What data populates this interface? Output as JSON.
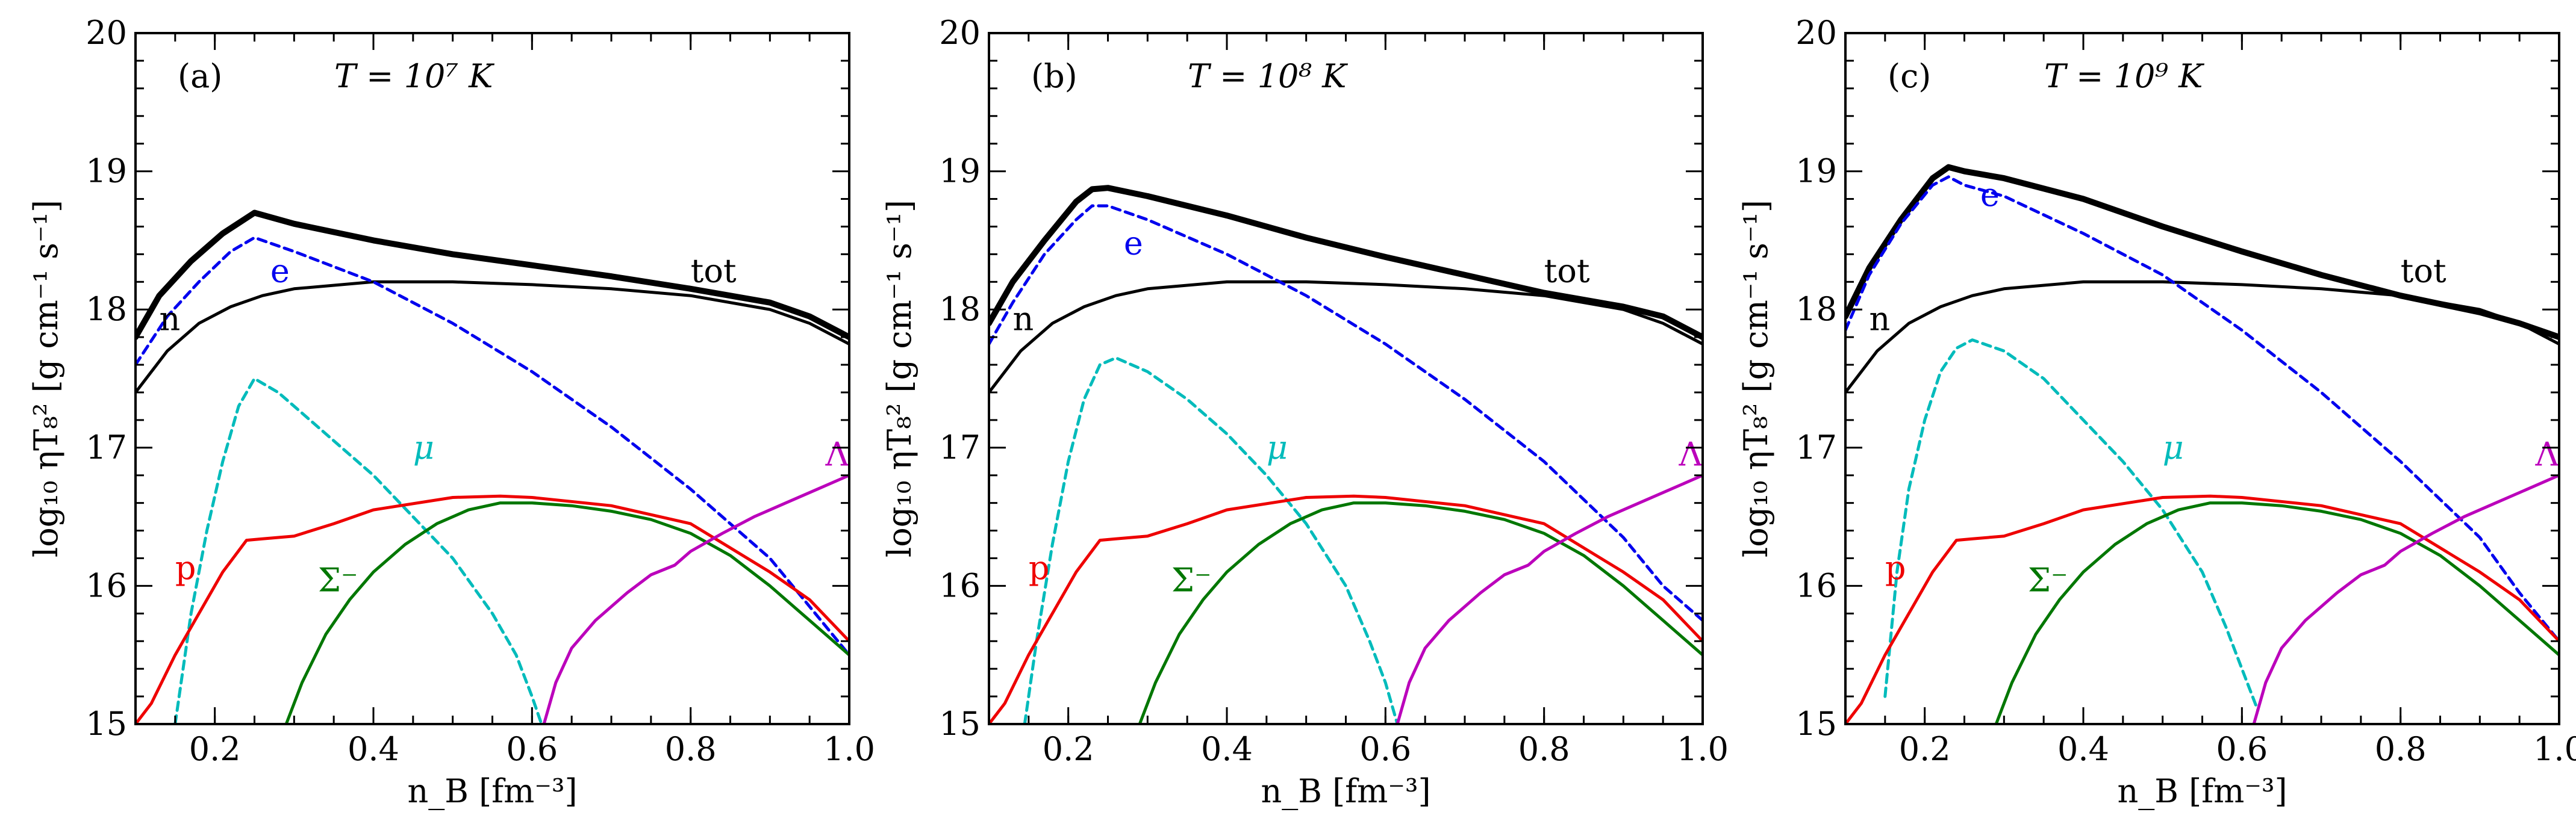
{
  "chart_data": [
    {
      "type": "line",
      "panel_label": "(a)",
      "temperature_label": "T = 10⁷ K",
      "xlabel": "n_B [fm⁻³]",
      "ylabel": "log₁₀ ηT₈² [g cm⁻¹ s⁻¹]",
      "xlim": [
        0.1,
        1.0
      ],
      "ylim": [
        15,
        20
      ],
      "xticks": [
        "0.2",
        "0.4",
        "0.6",
        "0.8",
        "1.0"
      ],
      "yticks": [
        "15",
        "16",
        "17",
        "18",
        "19",
        "20"
      ],
      "series": [
        {
          "name": "tot",
          "label": "tot",
          "color": "#000000",
          "style": "thick",
          "label_at": [
            0.8,
            18.2
          ],
          "x": [
            0.1,
            0.13,
            0.17,
            0.21,
            0.25,
            0.3,
            0.4,
            0.5,
            0.6,
            0.7,
            0.8,
            0.9,
            0.95,
            1.0
          ],
          "y": [
            17.8,
            18.1,
            18.35,
            18.55,
            18.7,
            18.62,
            18.5,
            18.4,
            18.32,
            18.24,
            18.15,
            18.05,
            17.95,
            17.8
          ]
        },
        {
          "name": "n",
          "label": "n",
          "color": "#000000",
          "style": "solid",
          "label_at": [
            0.13,
            17.85
          ],
          "x": [
            0.1,
            0.14,
            0.18,
            0.22,
            0.26,
            0.3,
            0.4,
            0.5,
            0.6,
            0.7,
            0.8,
            0.9,
            0.95,
            1.0
          ],
          "y": [
            17.4,
            17.7,
            17.9,
            18.02,
            18.1,
            18.15,
            18.2,
            18.2,
            18.18,
            18.15,
            18.1,
            18.0,
            17.9,
            17.75
          ]
        },
        {
          "name": "e",
          "label": "e",
          "color": "#0000ee",
          "style": "dashed",
          "label_at": [
            0.27,
            18.2
          ],
          "x": [
            0.1,
            0.14,
            0.18,
            0.22,
            0.25,
            0.3,
            0.4,
            0.5,
            0.6,
            0.7,
            0.8,
            0.9,
            0.95,
            1.0
          ],
          "y": [
            17.6,
            17.95,
            18.2,
            18.42,
            18.52,
            18.42,
            18.2,
            17.9,
            17.55,
            17.15,
            16.7,
            16.2,
            15.85,
            15.5
          ]
        },
        {
          "name": "mu",
          "label": "μ",
          "color": "#00bbbb",
          "style": "dashed",
          "label_at": [
            0.45,
            16.92
          ],
          "x": [
            0.15,
            0.17,
            0.19,
            0.21,
            0.23,
            0.25,
            0.28,
            0.32,
            0.36,
            0.4,
            0.45,
            0.5,
            0.55,
            0.58,
            0.6,
            0.612
          ],
          "y": [
            15.0,
            15.8,
            16.4,
            16.9,
            17.3,
            17.5,
            17.4,
            17.2,
            17.0,
            16.8,
            16.5,
            16.2,
            15.8,
            15.5,
            15.2,
            15.0
          ]
        },
        {
          "name": "p",
          "label": "p",
          "color": "#ee0000",
          "style": "solid",
          "label_at": [
            0.15,
            16.05
          ],
          "x": [
            0.1,
            0.12,
            0.15,
            0.18,
            0.21,
            0.24,
            0.26,
            0.3,
            0.35,
            0.4,
            0.5,
            0.56,
            0.6,
            0.7,
            0.8,
            0.9,
            0.95,
            1.0
          ],
          "y": [
            15.0,
            15.15,
            15.5,
            15.8,
            16.1,
            16.33,
            16.34,
            16.36,
            16.45,
            16.55,
            16.64,
            16.65,
            16.64,
            16.58,
            16.45,
            16.1,
            15.9,
            15.6
          ]
        },
        {
          "name": "sigma",
          "label": "Σ⁻",
          "color": "#007700",
          "style": "solid",
          "label_at": [
            0.33,
            15.96
          ],
          "x": [
            0.29,
            0.31,
            0.34,
            0.37,
            0.4,
            0.44,
            0.48,
            0.52,
            0.56,
            0.6,
            0.65,
            0.7,
            0.75,
            0.8,
            0.85,
            0.9,
            0.95,
            1.0
          ],
          "y": [
            15.0,
            15.3,
            15.65,
            15.9,
            16.1,
            16.3,
            16.45,
            16.55,
            16.6,
            16.6,
            16.58,
            16.54,
            16.48,
            16.38,
            16.22,
            16.0,
            15.75,
            15.5
          ]
        },
        {
          "name": "lambda",
          "label": "Λ",
          "color": "#bb00bb",
          "style": "solid",
          "label_at": [
            0.97,
            16.87
          ],
          "x": [
            0.615,
            0.63,
            0.65,
            0.68,
            0.72,
            0.75,
            0.78,
            0.8,
            0.84,
            0.88,
            0.92,
            0.96,
            1.0
          ],
          "y": [
            15.0,
            15.3,
            15.55,
            15.75,
            15.95,
            16.08,
            16.15,
            16.25,
            16.38,
            16.5,
            16.6,
            16.7,
            16.8
          ]
        }
      ]
    },
    {
      "type": "line",
      "panel_label": "(b)",
      "temperature_label": "T = 10⁸ K",
      "xlabel": "n_B [fm⁻³]",
      "ylabel": "log₁₀ ηT₈² [g cm⁻¹ s⁻¹]",
      "xlim": [
        0.1,
        1.0
      ],
      "ylim": [
        15,
        20
      ],
      "xticks": [
        "0.2",
        "0.4",
        "0.6",
        "0.8",
        "1.0"
      ],
      "yticks": [
        "15",
        "16",
        "17",
        "18",
        "19",
        "20"
      ],
      "series": [
        {
          "name": "tot",
          "label": "tot",
          "color": "#000000",
          "style": "thick",
          "label_at": [
            0.8,
            18.2
          ],
          "x": [
            0.1,
            0.13,
            0.17,
            0.21,
            0.23,
            0.25,
            0.3,
            0.4,
            0.5,
            0.6,
            0.7,
            0.8,
            0.9,
            0.95,
            1.0
          ],
          "y": [
            17.9,
            18.2,
            18.5,
            18.78,
            18.87,
            18.88,
            18.82,
            18.68,
            18.52,
            18.38,
            18.25,
            18.12,
            18.02,
            17.95,
            17.8
          ]
        },
        {
          "name": "n",
          "label": "n",
          "color": "#000000",
          "style": "solid",
          "label_at": [
            0.13,
            17.85
          ],
          "x": [
            0.1,
            0.14,
            0.18,
            0.22,
            0.26,
            0.3,
            0.4,
            0.5,
            0.6,
            0.7,
            0.8,
            0.9,
            0.95,
            1.0
          ],
          "y": [
            17.4,
            17.7,
            17.9,
            18.02,
            18.1,
            18.15,
            18.2,
            18.2,
            18.18,
            18.15,
            18.1,
            18.0,
            17.9,
            17.75
          ]
        },
        {
          "name": "e",
          "label": "e",
          "color": "#0000ee",
          "style": "dashed",
          "label_at": [
            0.27,
            18.4
          ],
          "x": [
            0.1,
            0.13,
            0.17,
            0.21,
            0.23,
            0.25,
            0.3,
            0.4,
            0.5,
            0.6,
            0.7,
            0.8,
            0.9,
            0.95,
            1.0
          ],
          "y": [
            17.75,
            18.05,
            18.4,
            18.65,
            18.75,
            18.75,
            18.65,
            18.4,
            18.1,
            17.75,
            17.35,
            16.9,
            16.35,
            16.0,
            15.75
          ]
        },
        {
          "name": "mu",
          "label": "μ",
          "color": "#00bbbb",
          "style": "dashed",
          "label_at": [
            0.45,
            16.92
          ],
          "x": [
            0.145,
            0.16,
            0.18,
            0.2,
            0.22,
            0.24,
            0.26,
            0.3,
            0.35,
            0.4,
            0.45,
            0.5,
            0.55,
            0.58,
            0.6,
            0.615
          ],
          "y": [
            15.0,
            15.6,
            16.3,
            16.9,
            17.35,
            17.6,
            17.65,
            17.55,
            17.35,
            17.1,
            16.8,
            16.45,
            16.0,
            15.6,
            15.3,
            15.0
          ]
        },
        {
          "name": "p",
          "label": "p",
          "color": "#ee0000",
          "style": "solid",
          "label_at": [
            0.15,
            16.05
          ],
          "x": [
            0.1,
            0.12,
            0.15,
            0.18,
            0.21,
            0.24,
            0.26,
            0.3,
            0.35,
            0.4,
            0.5,
            0.56,
            0.6,
            0.7,
            0.8,
            0.9,
            0.95,
            1.0
          ],
          "y": [
            15.0,
            15.15,
            15.5,
            15.8,
            16.1,
            16.33,
            16.34,
            16.36,
            16.45,
            16.55,
            16.64,
            16.65,
            16.64,
            16.58,
            16.45,
            16.1,
            15.9,
            15.6
          ]
        },
        {
          "name": "sigma",
          "label": "Σ⁻",
          "color": "#007700",
          "style": "solid",
          "label_at": [
            0.33,
            15.96
          ],
          "x": [
            0.29,
            0.31,
            0.34,
            0.37,
            0.4,
            0.44,
            0.48,
            0.52,
            0.56,
            0.6,
            0.65,
            0.7,
            0.75,
            0.8,
            0.85,
            0.9,
            0.95,
            1.0
          ],
          "y": [
            15.0,
            15.3,
            15.65,
            15.9,
            16.1,
            16.3,
            16.45,
            16.55,
            16.6,
            16.6,
            16.58,
            16.54,
            16.48,
            16.38,
            16.22,
            16.0,
            15.75,
            15.5
          ]
        },
        {
          "name": "lambda",
          "label": "Λ",
          "color": "#bb00bb",
          "style": "solid",
          "label_at": [
            0.97,
            16.87
          ],
          "x": [
            0.615,
            0.63,
            0.65,
            0.68,
            0.72,
            0.75,
            0.78,
            0.8,
            0.84,
            0.88,
            0.92,
            0.96,
            1.0
          ],
          "y": [
            15.0,
            15.3,
            15.55,
            15.75,
            15.95,
            16.08,
            16.15,
            16.25,
            16.38,
            16.5,
            16.6,
            16.7,
            16.8
          ]
        }
      ]
    },
    {
      "type": "line",
      "panel_label": "(c)",
      "temperature_label": "T = 10⁹ K",
      "xlabel": "n_B [fm⁻³]",
      "ylabel": "log₁₀ ηT₈² [g cm⁻¹ s⁻¹]",
      "xlim": [
        0.1,
        1.0
      ],
      "ylim": [
        15,
        20
      ],
      "xticks": [
        "0.2",
        "0.4",
        "0.6",
        "0.8",
        "1.0"
      ],
      "yticks": [
        "15",
        "16",
        "17",
        "18",
        "19",
        "20"
      ],
      "series": [
        {
          "name": "tot",
          "label": "tot",
          "color": "#000000",
          "style": "thick",
          "label_at": [
            0.8,
            18.2
          ],
          "x": [
            0.1,
            0.13,
            0.17,
            0.21,
            0.23,
            0.25,
            0.3,
            0.4,
            0.5,
            0.6,
            0.7,
            0.8,
            0.9,
            0.95,
            1.0
          ],
          "y": [
            17.95,
            18.3,
            18.65,
            18.95,
            19.03,
            19.0,
            18.95,
            18.8,
            18.6,
            18.42,
            18.25,
            18.1,
            17.98,
            17.9,
            17.8
          ]
        },
        {
          "name": "n",
          "label": "n",
          "color": "#000000",
          "style": "solid",
          "label_at": [
            0.13,
            17.85
          ],
          "x": [
            0.1,
            0.14,
            0.18,
            0.22,
            0.26,
            0.3,
            0.4,
            0.5,
            0.6,
            0.7,
            0.8,
            0.9,
            0.95,
            1.0
          ],
          "y": [
            17.4,
            17.7,
            17.9,
            18.02,
            18.1,
            18.15,
            18.2,
            18.2,
            18.18,
            18.15,
            18.1,
            18.0,
            17.9,
            17.75
          ]
        },
        {
          "name": "e",
          "label": "e",
          "color": "#0000ee",
          "style": "dashed",
          "label_at": [
            0.27,
            18.75
          ],
          "x": [
            0.1,
            0.13,
            0.17,
            0.21,
            0.23,
            0.25,
            0.3,
            0.4,
            0.5,
            0.6,
            0.7,
            0.8,
            0.9,
            0.95,
            1.0
          ],
          "y": [
            17.85,
            18.25,
            18.62,
            18.9,
            18.96,
            18.9,
            18.82,
            18.55,
            18.25,
            17.85,
            17.4,
            16.9,
            16.35,
            15.95,
            15.6
          ]
        },
        {
          "name": "mu",
          "label": "μ",
          "color": "#00bbbb",
          "style": "dashed",
          "label_at": [
            0.5,
            16.92
          ],
          "x": [
            0.15,
            0.165,
            0.18,
            0.2,
            0.22,
            0.24,
            0.26,
            0.3,
            0.35,
            0.4,
            0.45,
            0.5,
            0.55,
            0.58,
            0.6,
            0.62
          ],
          "y": [
            15.2,
            16.1,
            16.7,
            17.2,
            17.55,
            17.72,
            17.78,
            17.7,
            17.5,
            17.2,
            16.9,
            16.55,
            16.1,
            15.7,
            15.4,
            15.1
          ]
        },
        {
          "name": "p",
          "label": "p",
          "color": "#ee0000",
          "style": "solid",
          "label_at": [
            0.15,
            16.05
          ],
          "x": [
            0.1,
            0.12,
            0.15,
            0.18,
            0.21,
            0.24,
            0.26,
            0.3,
            0.35,
            0.4,
            0.5,
            0.56,
            0.6,
            0.7,
            0.8,
            0.9,
            0.95,
            1.0
          ],
          "y": [
            15.0,
            15.15,
            15.5,
            15.8,
            16.1,
            16.33,
            16.34,
            16.36,
            16.45,
            16.55,
            16.64,
            16.65,
            16.64,
            16.58,
            16.45,
            16.1,
            15.9,
            15.6
          ]
        },
        {
          "name": "sigma",
          "label": "Σ⁻",
          "color": "#007700",
          "style": "solid",
          "label_at": [
            0.33,
            15.96
          ],
          "x": [
            0.29,
            0.31,
            0.34,
            0.37,
            0.4,
            0.44,
            0.48,
            0.52,
            0.56,
            0.6,
            0.65,
            0.7,
            0.75,
            0.8,
            0.85,
            0.9,
            0.95,
            1.0
          ],
          "y": [
            15.0,
            15.3,
            15.65,
            15.9,
            16.1,
            16.3,
            16.45,
            16.55,
            16.6,
            16.6,
            16.58,
            16.54,
            16.48,
            16.38,
            16.22,
            16.0,
            15.75,
            15.5
          ]
        },
        {
          "name": "lambda",
          "label": "Λ",
          "color": "#bb00bb",
          "style": "solid",
          "label_at": [
            0.97,
            16.87
          ],
          "x": [
            0.615,
            0.63,
            0.65,
            0.68,
            0.72,
            0.75,
            0.78,
            0.8,
            0.84,
            0.88,
            0.92,
            0.96,
            1.0
          ],
          "y": [
            15.0,
            15.3,
            15.55,
            15.75,
            15.95,
            16.08,
            16.15,
            16.25,
            16.38,
            16.5,
            16.6,
            16.7,
            16.8
          ]
        }
      ]
    }
  ]
}
